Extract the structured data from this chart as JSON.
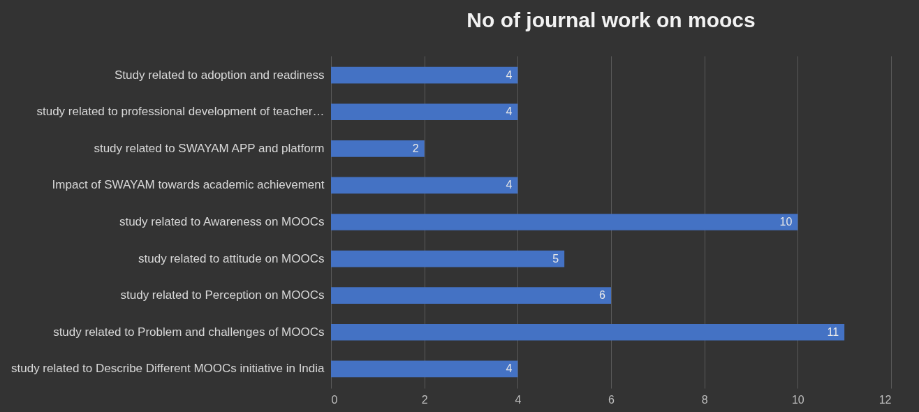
{
  "chart_data": {
    "type": "bar",
    "orientation": "horizontal",
    "title": "No of journal work on moocs",
    "categories": [
      "Study related to adoption and readiness",
      "study related to professional development of teacher…",
      "study related to SWAYAM APP and platform",
      "Impact of SWAYAM towards academic achievement",
      "study related to Awareness on MOOCs",
      "study related to attitude on MOOCs",
      "study related to Perception on MOOCs",
      "study related to Problem and challenges of MOOCs",
      "study related to Describe Different MOOCs initiative in India"
    ],
    "values": [
      4,
      4,
      2,
      4,
      10,
      5,
      6,
      11,
      4
    ],
    "color": "#4472c4",
    "xlim": [
      0,
      12
    ],
    "xticks": [
      0,
      2,
      4,
      6,
      8,
      10,
      12
    ],
    "grid": "x",
    "data_labels": true
  }
}
